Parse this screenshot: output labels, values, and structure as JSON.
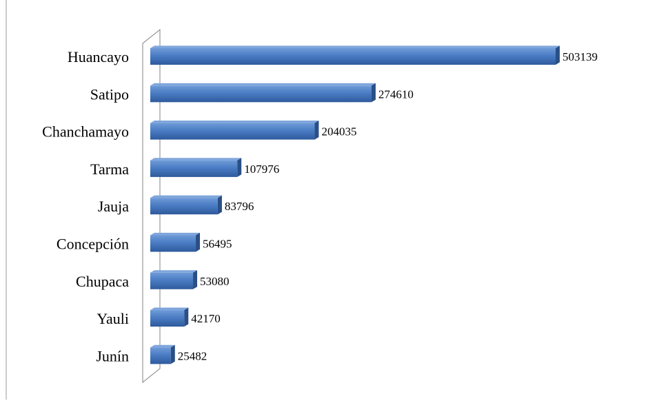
{
  "chart_data": {
    "type": "bar",
    "orientation": "horizontal",
    "style": "3d",
    "categories": [
      "Huancayo",
      "Satipo",
      "Chanchamayo",
      "Tarma",
      "Jauja",
      "Concepción",
      "Chupaca",
      "Yauli",
      "Junín"
    ],
    "values": [
      503139,
      274610,
      204035,
      107976,
      83796,
      56495,
      53080,
      42170,
      25482
    ],
    "data_labels": [
      "503139",
      "274610",
      "204035",
      "107976",
      "83796",
      "56495",
      "53080",
      "42170",
      "25482"
    ],
    "title": "",
    "xlabel": "",
    "ylabel": "",
    "xlim": [
      0,
      503139
    ],
    "grid": false,
    "legend": "none",
    "colors": {
      "bar_front": "#4a7cc4",
      "bar_top": "#7fa6dc",
      "bar_side": "#2a4f86",
      "wall": "#808080",
      "text": "#000000"
    }
  }
}
